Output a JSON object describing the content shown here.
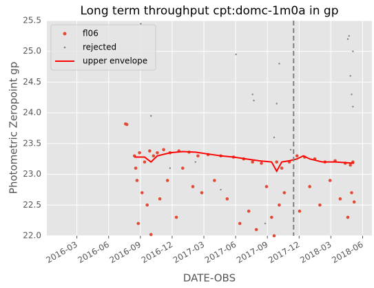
{
  "chart_data": {
    "type": "scatter",
    "title": "Long term throughput  cpt:domc-1m0a in gp",
    "xlabel": "DATE-OBS",
    "ylabel": "Photometric Zeropoint gp",
    "xlim": [
      2015.93,
      2018.49
    ],
    "ylim": [
      22,
      25.5
    ],
    "xticks": [
      {
        "value": 2016.1667,
        "label": "2016-03"
      },
      {
        "value": 2016.4167,
        "label": "2016-06"
      },
      {
        "value": 2016.6667,
        "label": "2016-09"
      },
      {
        "value": 2016.9167,
        "label": "2016-12"
      },
      {
        "value": 2017.1667,
        "label": "2017-03"
      },
      {
        "value": 2017.4167,
        "label": "2017-06"
      },
      {
        "value": 2017.6667,
        "label": "2017-09"
      },
      {
        "value": 2017.9167,
        "label": "2017-12"
      },
      {
        "value": 2018.1667,
        "label": "2018-03"
      },
      {
        "value": 2018.4167,
        "label": "2018-06"
      }
    ],
    "yticks": [
      {
        "value": 22,
        "label": "22.0"
      },
      22.5,
      {
        "value": 23,
        "label": "23.0"
      },
      23.5,
      {
        "value": 24,
        "label": "24.0"
      },
      24.5,
      {
        "value": 25,
        "label": "25.0"
      },
      25.5
    ],
    "grid": true,
    "legend": "upper left",
    "vline": 2017.873,
    "vline_color": "#808080",
    "series": [
      {
        "name": "fl06",
        "kind": "points",
        "color": "#e24a33",
        "x": [
          2016.55,
          2016.56,
          2016.62,
          2016.63,
          2016.64,
          2016.65,
          2016.66,
          2016.68,
          2016.7,
          2016.72,
          2016.74,
          2016.75,
          2016.77,
          2016.8,
          2016.82,
          2016.85,
          2016.88,
          2016.9,
          2016.95,
          2016.97,
          2017.0,
          2017.05,
          2017.08,
          2017.12,
          2017.15,
          2017.2,
          2017.25,
          2017.3,
          2017.35,
          2017.4,
          2017.45,
          2017.48,
          2017.52,
          2017.55,
          2017.58,
          2017.62,
          2017.66,
          2017.7,
          2017.72,
          2017.74,
          2017.76,
          2017.78,
          2017.8,
          2017.84,
          2017.9,
          2017.92,
          2017.96,
          2018.0,
          2018.04,
          2018.08,
          2018.12,
          2018.16,
          2018.2,
          2018.24,
          2018.28,
          2018.3,
          2018.32,
          2018.33,
          2018.34,
          2018.35
        ],
        "values": [
          23.82,
          23.81,
          23.3,
          23.1,
          22.9,
          22.2,
          23.35,
          22.7,
          23.2,
          22.5,
          23.38,
          22.02,
          23.3,
          23.35,
          22.6,
          23.4,
          22.9,
          23.35,
          22.3,
          23.38,
          23.1,
          23.36,
          22.8,
          23.3,
          22.7,
          23.32,
          22.9,
          23.3,
          22.6,
          23.28,
          22.2,
          23.25,
          22.4,
          23.2,
          22.1,
          23.18,
          22.8,
          22.3,
          22.0,
          23.2,
          22.5,
          23.1,
          22.7,
          23.2,
          23.3,
          22.4,
          23.28,
          22.8,
          23.25,
          22.5,
          23.2,
          22.9,
          23.22,
          22.6,
          23.18,
          22.3,
          23.15,
          22.7,
          23.2,
          22.55
        ]
      },
      {
        "name": "rejected",
        "kind": "points",
        "color": "#808080",
        "x": [
          2016.67,
          2016.75,
          2017.42,
          2017.55,
          2017.56,
          2017.72,
          2017.76,
          2017.74,
          2017.65,
          2018.3,
          2018.31,
          2018.32,
          2018.34,
          2018.33,
          2018.34,
          2017.85,
          2017.3,
          2016.9,
          2017.1
        ],
        "values": [
          25.45,
          23.95,
          24.95,
          24.3,
          24.2,
          23.6,
          24.8,
          24.15,
          22.2,
          25.2,
          25.25,
          24.6,
          24.1,
          24.3,
          25.0,
          23.4,
          22.75,
          23.1,
          23.2
        ]
      },
      {
        "name": "upper envelope",
        "kind": "line",
        "color": "#ff0000",
        "x": [
          2016.62,
          2016.7,
          2016.75,
          2016.8,
          2016.9,
          2017.0,
          2017.1,
          2017.2,
          2017.3,
          2017.4,
          2017.5,
          2017.6,
          2017.7,
          2017.74,
          2017.78,
          2017.84,
          2017.9,
          2017.95,
          2018.0,
          2018.1,
          2018.2,
          2018.35
        ],
        "values": [
          23.28,
          23.28,
          23.2,
          23.3,
          23.35,
          23.37,
          23.36,
          23.33,
          23.3,
          23.28,
          23.25,
          23.22,
          23.2,
          23.05,
          23.2,
          23.22,
          23.25,
          23.3,
          23.25,
          23.2,
          23.2,
          23.18
        ]
      }
    ]
  }
}
